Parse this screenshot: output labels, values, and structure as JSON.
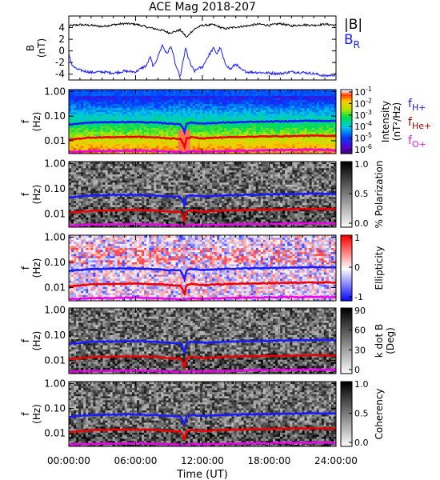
{
  "title": "ACE Mag 2018-207",
  "x_axis": {
    "label": "Time (UT)",
    "range_hours": [
      0,
      24
    ],
    "ticks": [
      {
        "hour": 0,
        "label": "00:00:00"
      },
      {
        "hour": 6,
        "label": "06:00:00"
      },
      {
        "hour": 12,
        "label": "12:00:00"
      },
      {
        "hour": 18,
        "label": "18:00:00"
      },
      {
        "hour": 24,
        "label": "24:00:00"
      }
    ]
  },
  "colors": {
    "black": "#000000",
    "blue": "#1a1aff",
    "red": "#ee0000",
    "magenta": "#ee00ee",
    "label_red": "#aa0000",
    "label_magenta": "#dd22dd"
  },
  "chart_data": [
    {
      "type": "line",
      "panel": "field",
      "ylabel": "B",
      "yunit": "(nT)",
      "ylim": [
        -5,
        6
      ],
      "yticks": [
        4,
        2,
        0,
        -2,
        -4
      ],
      "legend_labels": [
        {
          "text": "|B|",
          "sub": ""
        },
        {
          "text": "B",
          "sub": "R"
        }
      ],
      "series": [
        {
          "color": "#000000",
          "x": [
            0,
            1,
            2,
            3,
            4,
            5,
            6,
            7,
            8,
            8.5,
            9,
            9.5,
            10,
            10.3,
            10.6,
            11,
            11.5,
            12,
            13,
            14,
            15,
            16,
            17,
            18,
            19,
            20,
            21,
            22,
            23,
            24
          ],
          "y": [
            4.3,
            4.5,
            4.4,
            4.2,
            4.5,
            4.7,
            4.6,
            4.1,
            3.7,
            3.5,
            3.1,
            3.3,
            3.6,
            3.0,
            2.3,
            3.3,
            4.0,
            4.4,
            4.5,
            3.8,
            4.1,
            4.3,
            4.6,
            4.4,
            4.7,
            4.3,
            4.5,
            4.4,
            4.6,
            4.4
          ]
        },
        {
          "color": "#1a1aff",
          "x": [
            0,
            0.3,
            0.6,
            1,
            2,
            3,
            4,
            5,
            6,
            6.5,
            7,
            7.3,
            7.6,
            8,
            8.4,
            8.8,
            9.2,
            9.6,
            10,
            10.3,
            10.5,
            10.7,
            11,
            11.3,
            11.6,
            12,
            12.5,
            13,
            13.3,
            13.6,
            14,
            14.5,
            15,
            15.5,
            16,
            17,
            18,
            19,
            20,
            21,
            22,
            23,
            24
          ],
          "y": [
            -0.5,
            -2.5,
            -3.0,
            -3.3,
            -3.7,
            -3.6,
            -3.8,
            -3.5,
            -3.6,
            -3.0,
            -2.5,
            -1.0,
            -2.8,
            -1.0,
            1.0,
            -0.5,
            0.8,
            -2.5,
            -4.5,
            -1.5,
            0.5,
            -1.0,
            -2.6,
            -3.5,
            -3.0,
            -2.8,
            -1.0,
            0.5,
            -0.5,
            0.6,
            -2.0,
            -3.2,
            -2.2,
            -3.3,
            -3.6,
            -3.7,
            -3.8,
            -3.9,
            -3.6,
            -3.7,
            -3.9,
            -4.3,
            -4.1
          ]
        }
      ]
    },
    {
      "type": "heatmap",
      "panel": "intensity",
      "ylabel": "f",
      "yunit": "(Hz)",
      "ylim": [
        0.003,
        1.2
      ],
      "yticks": [
        1.0,
        0.1,
        0.01
      ],
      "ytick_labels": [
        "1.00",
        "0.10",
        "0.01"
      ],
      "colorbar": {
        "label": "Intensity",
        "unit": "(nT²/Hz)",
        "ticks": [
          {
            "base": "10",
            "exp": "-1"
          },
          {
            "base": "10",
            "exp": "-2"
          },
          {
            "base": "10",
            "exp": "-3"
          },
          {
            "base": "10",
            "exp": "-4"
          },
          {
            "base": "10",
            "exp": "-5"
          },
          {
            "base": "10",
            "exp": "-6"
          }
        ]
      },
      "legend_labels": [
        {
          "text": "f",
          "sub": "H+",
          "color": "#1a1aff"
        },
        {
          "text": "f",
          "sub": "He+",
          "color": "#aa0000"
        },
        {
          "text": "f",
          "sub": "O+",
          "color": "#dd22dd"
        }
      ]
    },
    {
      "type": "heatmap",
      "panel": "polarization",
      "ylabel": "f",
      "yunit": "(Hz)",
      "ylim": [
        0.003,
        1.2
      ],
      "yticks": [
        1.0,
        0.1,
        0.01
      ],
      "ytick_labels": [
        "1.00",
        "0.10",
        "0.01"
      ],
      "colorbar": {
        "label": "% Polarization",
        "unit": "",
        "ticks": [
          "1.0",
          "0.5",
          "0.0"
        ]
      }
    },
    {
      "type": "heatmap",
      "panel": "ellipticity",
      "ylabel": "f",
      "yunit": "(Hz)",
      "ylim": [
        0.003,
        1.2
      ],
      "yticks": [
        1.0,
        0.1,
        0.01
      ],
      "ytick_labels": [
        "1.00",
        "0.10",
        "0.01"
      ],
      "colorbar": {
        "label": "Ellipticity",
        "unit": "",
        "ticks": [
          "1",
          "0",
          "-1"
        ]
      }
    },
    {
      "type": "heatmap",
      "panel": "kdotb",
      "ylabel": "f",
      "yunit": "(Hz)",
      "ylim": [
        0.003,
        1.2
      ],
      "yticks": [
        1.0,
        0.1,
        0.01
      ],
      "ytick_labels": [
        "1.00",
        "0.10",
        "0.01"
      ],
      "colorbar": {
        "label": "k dot B",
        "unit": "(Deg)",
        "ticks": [
          "90",
          "60",
          "30",
          "0"
        ]
      }
    },
    {
      "type": "heatmap",
      "panel": "coherency",
      "ylabel": "f",
      "yunit": "(Hz)",
      "ylim": [
        0.003,
        1.2
      ],
      "yticks": [
        1.0,
        0.1,
        0.01
      ],
      "ytick_labels": [
        "1.00",
        "0.10",
        "0.01"
      ],
      "colorbar": {
        "label": "Coherency",
        "unit": "",
        "ticks": [
          "1.0",
          "0.5",
          "0.0"
        ]
      }
    }
  ],
  "gyrofrequency_lines": [
    {
      "color": "#1a1aff",
      "x": [
        0,
        2,
        4,
        6,
        8,
        9,
        10,
        10.4,
        10.6,
        11,
        12,
        14,
        16,
        18,
        20,
        22,
        24
      ],
      "y": [
        0.045,
        0.055,
        0.057,
        0.058,
        0.054,
        0.05,
        0.048,
        0.022,
        0.05,
        0.055,
        0.05,
        0.055,
        0.058,
        0.06,
        0.062,
        0.065,
        0.063
      ]
    },
    {
      "color": "#ee0000",
      "x": [
        0,
        2,
        4,
        6,
        8,
        9,
        10,
        10.4,
        10.6,
        11,
        12,
        14,
        16,
        18,
        20,
        22,
        24
      ],
      "y": [
        0.011,
        0.0135,
        0.014,
        0.0145,
        0.0135,
        0.0125,
        0.012,
        0.0055,
        0.0125,
        0.0138,
        0.0125,
        0.0138,
        0.0145,
        0.015,
        0.0155,
        0.016,
        0.0158
      ]
    },
    {
      "color": "#ee00ee",
      "x": [
        0,
        2,
        4,
        6,
        8,
        9,
        10,
        10.4,
        10.6,
        11,
        12,
        14,
        16,
        18,
        20,
        22,
        24
      ],
      "y": [
        0.0035,
        0.0038,
        0.0039,
        0.004,
        0.0038,
        0.0036,
        0.0035,
        0.0031,
        0.0035,
        0.0038,
        0.0036,
        0.0038,
        0.004,
        0.0041,
        0.0042,
        0.0043,
        0.0042
      ]
    }
  ]
}
